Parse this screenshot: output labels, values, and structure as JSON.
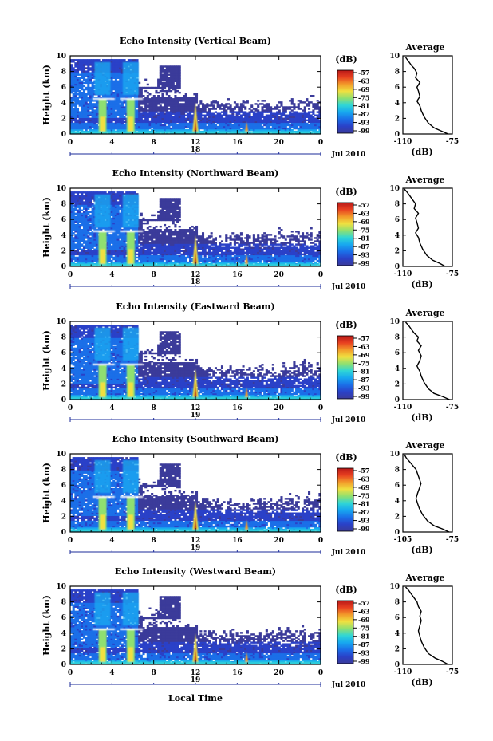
{
  "chart_data": [
    {
      "type": "heatmap",
      "title": "Echo Intensity (Vertical Beam)",
      "ylabel": "Height (km)",
      "x_ticks": [
        "0",
        "4",
        "8",
        "12",
        "16",
        "20",
        "0"
      ],
      "y_ticks": [
        "0",
        "2",
        "4",
        "6",
        "8",
        "10"
      ],
      "xlim": [
        0,
        24
      ],
      "ylim": [
        0,
        10
      ],
      "date_label": "18",
      "date_suffix": "Jul 2010",
      "colorbar": {
        "unit": "(dB)",
        "ticks": [
          "-57",
          "-63",
          "-69",
          "-75",
          "-81",
          "-87",
          "-93",
          "-99"
        ]
      },
      "average": {
        "title": "Average",
        "xlabel": "(dB)",
        "x_ticks": [
          "-110",
          "-75"
        ],
        "xlim": [
          -110,
          -75
        ],
        "profile": [
          [
            -78,
            0
          ],
          [
            -83,
            0.4
          ],
          [
            -88,
            0.8
          ],
          [
            -92,
            1.4
          ],
          [
            -95,
            2.2
          ],
          [
            -97,
            3
          ],
          [
            -98,
            3.6
          ],
          [
            -100,
            4.2
          ],
          [
            -98,
            4.8
          ],
          [
            -99,
            5.5
          ],
          [
            -100,
            6
          ],
          [
            -98,
            6.6
          ],
          [
            -101,
            7.2
          ],
          [
            -100,
            7.8
          ],
          [
            -102,
            8.4
          ],
          [
            -104,
            8.8
          ],
          [
            -106,
            9.3
          ],
          [
            -108,
            9.8
          ]
        ]
      }
    },
    {
      "type": "heatmap",
      "title": "Echo Intensity (Northward Beam)",
      "ylabel": "Height (km)",
      "x_ticks": [
        "0",
        "4",
        "8",
        "12",
        "16",
        "20",
        "0"
      ],
      "y_ticks": [
        "0",
        "2",
        "4",
        "6",
        "8",
        "10"
      ],
      "xlim": [
        0,
        24
      ],
      "ylim": [
        0,
        10
      ],
      "date_label": "18",
      "date_suffix": "Jul 2010",
      "colorbar": {
        "unit": "(dB)",
        "ticks": [
          "-57",
          "-63",
          "-69",
          "-75",
          "-81",
          "-87",
          "-93",
          "-99"
        ]
      },
      "average": {
        "title": "Average",
        "xlabel": "(dB)",
        "x_ticks": [
          "-110",
          "-75"
        ],
        "xlim": [
          -110,
          -75
        ],
        "profile": [
          [
            -80,
            0
          ],
          [
            -84,
            0.4
          ],
          [
            -89,
            0.8
          ],
          [
            -93,
            1.4
          ],
          [
            -96,
            2.2
          ],
          [
            -98,
            3
          ],
          [
            -99,
            3.7
          ],
          [
            -101,
            4.3
          ],
          [
            -99,
            4.9
          ],
          [
            -100,
            5.6
          ],
          [
            -101,
            6.2
          ],
          [
            -99,
            6.8
          ],
          [
            -102,
            7.4
          ],
          [
            -101,
            8
          ],
          [
            -103,
            8.5
          ],
          [
            -105,
            9
          ],
          [
            -107,
            9.5
          ],
          [
            -109,
            9.9
          ]
        ]
      }
    },
    {
      "type": "heatmap",
      "title": "Echo Intensity (Eastward Beam)",
      "ylabel": "Height (km)",
      "x_ticks": [
        "0",
        "4",
        "8",
        "12",
        "16",
        "20",
        "0"
      ],
      "y_ticks": [
        "0",
        "2",
        "4",
        "6",
        "8",
        "10"
      ],
      "xlim": [
        0,
        24
      ],
      "ylim": [
        0,
        10
      ],
      "date_label": "19",
      "date_suffix": "Jul 2010",
      "colorbar": {
        "unit": "(dB)",
        "ticks": [
          "-57",
          "-63",
          "-69",
          "-75",
          "-81",
          "-87",
          "-93",
          "-99"
        ]
      },
      "average": {
        "title": "Average",
        "xlabel": "(dB)",
        "x_ticks": [
          "-110",
          "-75"
        ],
        "xlim": [
          -110,
          -75
        ],
        "profile": [
          [
            -77,
            0
          ],
          [
            -82,
            0.4
          ],
          [
            -88,
            0.8
          ],
          [
            -92,
            1.4
          ],
          [
            -95,
            2.2
          ],
          [
            -97,
            3
          ],
          [
            -98,
            3.6
          ],
          [
            -100,
            4.3
          ],
          [
            -98,
            5
          ],
          [
            -97,
            5.6
          ],
          [
            -99,
            6.3
          ],
          [
            -97,
            6.9
          ],
          [
            -100,
            7.5
          ],
          [
            -99,
            8
          ],
          [
            -102,
            8.5
          ],
          [
            -104,
            9
          ],
          [
            -106,
            9.5
          ],
          [
            -108,
            9.9
          ]
        ]
      }
    },
    {
      "type": "heatmap",
      "title": "Echo Intensity (Southward Beam)",
      "ylabel": "Height (km)",
      "x_ticks": [
        "0",
        "4",
        "8",
        "12",
        "16",
        "20",
        "0"
      ],
      "y_ticks": [
        "0",
        "2",
        "4",
        "6",
        "8",
        "10"
      ],
      "xlim": [
        0,
        24
      ],
      "ylim": [
        0,
        10
      ],
      "date_label": "19",
      "date_suffix": "Jul 2010",
      "colorbar": {
        "unit": "(dB)",
        "ticks": [
          "-57",
          "-63",
          "-69",
          "-75",
          "-81",
          "-87",
          "-93",
          "-99"
        ]
      },
      "average": {
        "title": "Average",
        "xlabel": "(dB)",
        "x_ticks": [
          "-105",
          "-75"
        ],
        "xlim": [
          -105,
          -75
        ],
        "profile": [
          [
            -77,
            0
          ],
          [
            -81,
            0.4
          ],
          [
            -86,
            0.8
          ],
          [
            -90,
            1.4
          ],
          [
            -93,
            2.2
          ],
          [
            -95,
            3
          ],
          [
            -96,
            3.6
          ],
          [
            -97,
            4.3
          ],
          [
            -96,
            5
          ],
          [
            -95,
            5.6
          ],
          [
            -94,
            6.2
          ],
          [
            -95,
            6.8
          ],
          [
            -96,
            7.4
          ],
          [
            -97,
            8
          ],
          [
            -99,
            8.5
          ],
          [
            -101,
            9
          ],
          [
            -103,
            9.5
          ],
          [
            -104,
            9.9
          ]
        ]
      }
    },
    {
      "type": "heatmap",
      "title": "Echo Intensity (Westward Beam)",
      "ylabel": "Height (km)",
      "x_ticks": [
        "0",
        "4",
        "8",
        "12",
        "16",
        "20",
        "0"
      ],
      "y_ticks": [
        "0",
        "2",
        "4",
        "6",
        "8",
        "10"
      ],
      "xlim": [
        0,
        24
      ],
      "ylim": [
        0,
        10
      ],
      "date_label": "19",
      "date_suffix": "Jul 2010",
      "colorbar": {
        "unit": "(dB)",
        "ticks": [
          "-57",
          "-63",
          "-69",
          "-75",
          "-81",
          "-87",
          "-93",
          "-99"
        ]
      },
      "average": {
        "title": "Average",
        "xlabel": "(dB)",
        "x_ticks": [
          "-110",
          "-75"
        ],
        "xlim": [
          -110,
          -75
        ],
        "profile": [
          [
            -78,
            0
          ],
          [
            -82,
            0.4
          ],
          [
            -87,
            0.8
          ],
          [
            -92,
            1.4
          ],
          [
            -95,
            2.2
          ],
          [
            -97,
            3
          ],
          [
            -98,
            3.6
          ],
          [
            -99,
            4.3
          ],
          [
            -98,
            5
          ],
          [
            -97,
            5.6
          ],
          [
            -98,
            6.2
          ],
          [
            -97,
            6.8
          ],
          [
            -99,
            7.4
          ],
          [
            -100,
            8
          ],
          [
            -102,
            8.5
          ],
          [
            -104,
            9
          ],
          [
            -106,
            9.5
          ],
          [
            -108,
            9.9
          ]
        ]
      }
    }
  ],
  "footer": {
    "xlabel": "Local Time"
  },
  "colors": {
    "scale": [
      "#3b3b9a",
      "#2a41c8",
      "#1b6fe8",
      "#17a8f0",
      "#2fd6d6",
      "#8fe070",
      "#f0e040",
      "#f29a2a",
      "#e84020",
      "#b81818"
    ]
  }
}
